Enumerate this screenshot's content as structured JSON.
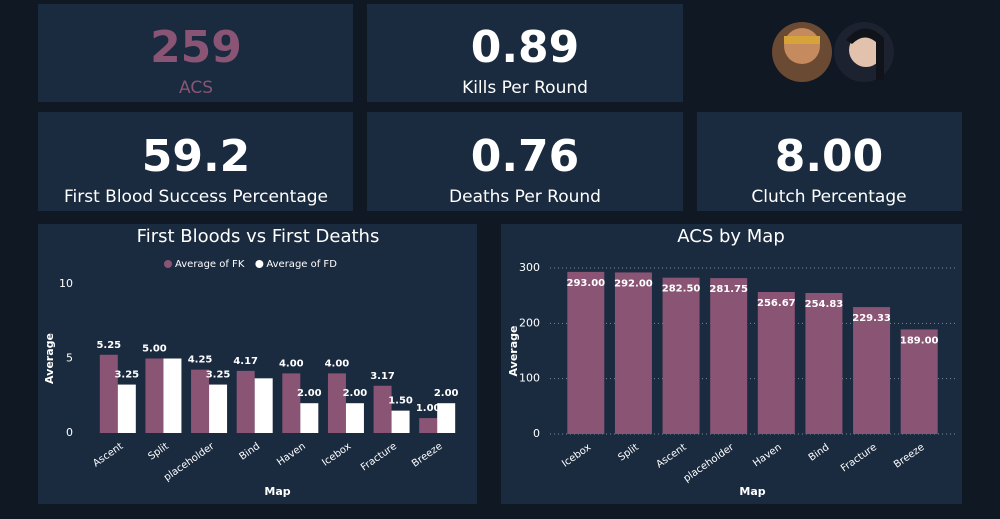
{
  "cards": [
    {
      "value": "259",
      "label": "ACS"
    },
    {
      "value": "0.89",
      "label": "Kills Per Round"
    },
    {
      "value": "59.2",
      "label": "First Blood Success Percentage"
    },
    {
      "value": "0.76",
      "label": "Deaths Per Round"
    },
    {
      "value": "8.00",
      "label": "Clutch Percentage"
    }
  ],
  "chart_data": [
    {
      "type": "bar",
      "title": "First Bloods vs First Deaths",
      "categories": [
        "Ascent",
        "Split",
        "placeholder",
        "Bind",
        "Haven",
        "Icebox",
        "Fracture",
        "Breeze"
      ],
      "series": [
        {
          "name": "Average of FK",
          "color": "#8a5575",
          "values": [
            5.25,
            5.0,
            4.25,
            4.17,
            4.0,
            4.0,
            3.17,
            1.0
          ],
          "value_labels": [
            "5.25",
            "5.00",
            "4.25",
            "4.17",
            "4.00",
            "4.00",
            "3.17",
            "1.00"
          ]
        },
        {
          "name": "Average of FD",
          "color": "#ffffff",
          "values": [
            3.25,
            5.0,
            3.25,
            3.67,
            2.0,
            2.0,
            1.5,
            2.0
          ],
          "value_labels": [
            "3.25",
            null,
            "3.25",
            null,
            "2.00",
            "2.00",
            "1.50",
            "2.00"
          ]
        }
      ],
      "ylim": [
        0,
        10
      ],
      "yticks": [
        0,
        5,
        10
      ],
      "grid": false,
      "y_label": "Average",
      "x_label": "Map",
      "legend": "top"
    },
    {
      "type": "bar",
      "title": "ACS by Map",
      "categories": [
        "Icebox",
        "Split",
        "Ascent",
        "placeholder",
        "Haven",
        "Bind",
        "Fracture",
        "Breeze"
      ],
      "values": [
        293.0,
        292.0,
        282.5,
        281.75,
        256.67,
        254.83,
        229.33,
        189.0
      ],
      "value_labels": [
        "293.00",
        "292.00",
        "282.50",
        "281.75",
        "256.67",
        "254.83",
        "229.33",
        "189.00"
      ],
      "color": "#8a5575",
      "ylim": [
        0,
        300
      ],
      "yticks": [
        0,
        100,
        200,
        300
      ],
      "grid": true,
      "y_label": "Average",
      "x_label": "Map"
    }
  ]
}
